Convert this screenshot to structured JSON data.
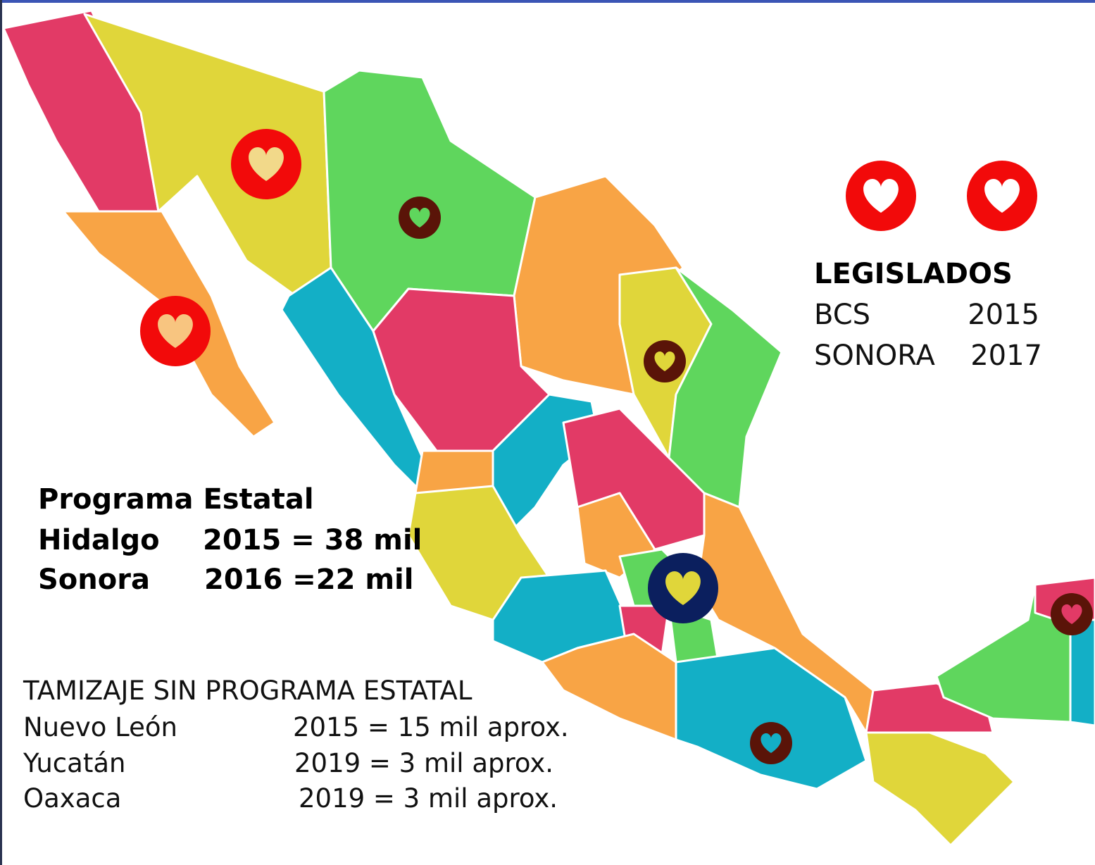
{
  "legislados": {
    "title": "LEGISLADOS",
    "rows": [
      [
        "BCS",
        "2015"
      ],
      [
        "SONORA",
        "2017"
      ]
    ]
  },
  "programa_estatal": {
    "title": "Programa Estatal",
    "rows": [
      [
        "Hidalgo",
        "2015 = 38 mil"
      ],
      [
        "Sonora",
        "2016 =22 mil"
      ]
    ]
  },
  "tamizaje": {
    "title": "TAMIZAJE SIN PROGRAMA ESTATAL",
    "rows": [
      [
        "Nuevo León",
        "2015 = 15 mil aprox."
      ],
      [
        "Yucatán",
        "2019 = 3 mil aprox."
      ],
      [
        "Oaxaca",
        "2019 = 3 mil aprox."
      ]
    ]
  }
}
